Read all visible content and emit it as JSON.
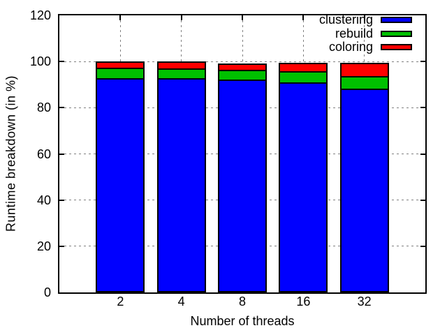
{
  "chart_data": {
    "type": "bar",
    "stacked": true,
    "title": "",
    "xlabel": "Number of threads",
    "ylabel": "Runtime breakdown (in %)",
    "ylim": [
      0,
      120
    ],
    "yticks": [
      0,
      20,
      40,
      60,
      80,
      100,
      120
    ],
    "categories": [
      "2",
      "4",
      "8",
      "16",
      "32"
    ],
    "series": [
      {
        "name": "clustering",
        "color": "#0000ff",
        "values": [
          92.2,
          92.2,
          91.7,
          90.4,
          87.8
        ]
      },
      {
        "name": "rebuild",
        "color": "#00c000",
        "values": [
          4.6,
          4.3,
          4.2,
          4.8,
          5.4
        ]
      },
      {
        "name": "coloring",
        "color": "#ff0000",
        "values": [
          3.2,
          3.5,
          3.4,
          4.3,
          6.3
        ]
      }
    ],
    "grid": true,
    "legend_position": "top-right-inside",
    "colors": {
      "axis": "#000000",
      "grid": "#808080",
      "background": "#ffffff",
      "text": "#000000"
    }
  }
}
